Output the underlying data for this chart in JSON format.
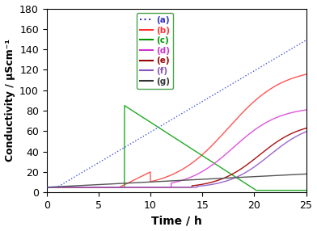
{
  "title": "",
  "xlabel": "Time / h",
  "ylabel": "Conductivity / μScm⁻¹",
  "xlim": [
    0,
    25
  ],
  "ylim": [
    0,
    180
  ],
  "yticks": [
    0,
    20,
    40,
    60,
    80,
    100,
    120,
    140,
    160,
    180
  ],
  "xticks": [
    0,
    5,
    10,
    15,
    20,
    25
  ],
  "legend_labels": [
    "(a)",
    "(b)",
    "(c)",
    "(d)",
    "(e)",
    "(f)",
    "(g)"
  ],
  "legend_colors": [
    "#3333cc",
    "#ff3333",
    "#009900",
    "#cc33cc",
    "#990000",
    "#8855bb",
    "#333333"
  ],
  "series_colors": [
    "#4455dd",
    "#ff5555",
    "#22aa22",
    "#dd55dd",
    "#aa1111",
    "#9966cc",
    "#555555"
  ],
  "background_color": "#ffffff"
}
